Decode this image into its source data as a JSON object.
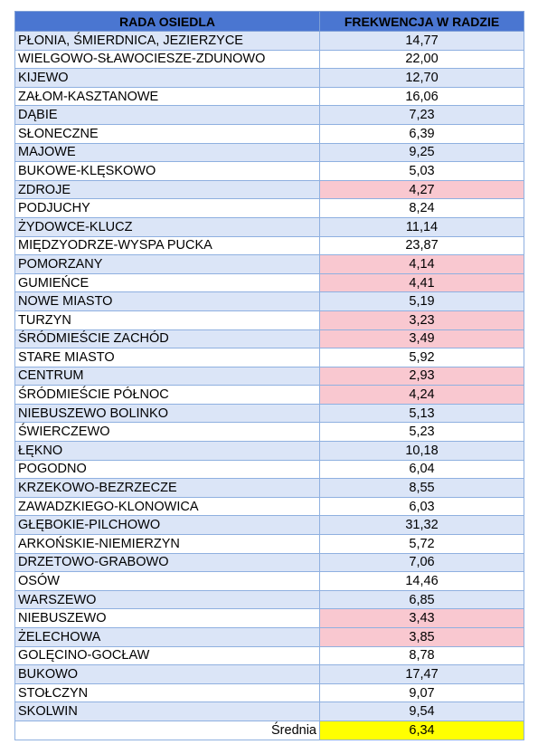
{
  "header": {
    "col1": "RADA OSIEDLA",
    "col2": "FREKWENCJA W RADZIE"
  },
  "rows": [
    {
      "name": "PŁONIA, ŚMIERDNICA, JEZIERZYCE",
      "value": "14,77",
      "low": false
    },
    {
      "name": "WIELGOWO-SŁAWOCIESZE-ZDUNOWO",
      "value": "22,00",
      "low": false
    },
    {
      "name": "KIJEWO",
      "value": "12,70",
      "low": false
    },
    {
      "name": "ZAŁOM-KASZTANOWE",
      "value": "16,06",
      "low": false
    },
    {
      "name": "DĄBIE",
      "value": "7,23",
      "low": false
    },
    {
      "name": "SŁONECZNE",
      "value": "6,39",
      "low": false
    },
    {
      "name": "MAJOWE",
      "value": "9,25",
      "low": false
    },
    {
      "name": "BUKOWE-KLĘSKOWO",
      "value": "5,03",
      "low": false
    },
    {
      "name": "ZDROJE",
      "value": "4,27",
      "low": true
    },
    {
      "name": "PODJUCHY",
      "value": "8,24",
      "low": false
    },
    {
      "name": "ŻYDOWCE-KLUCZ",
      "value": "11,14",
      "low": false
    },
    {
      "name": "MIĘDZYODRZE-WYSPA PUCKA",
      "value": "23,87",
      "low": false
    },
    {
      "name": "POMORZANY",
      "value": "4,14",
      "low": true
    },
    {
      "name": "GUMIEŃCE",
      "value": "4,41",
      "low": true
    },
    {
      "name": "NOWE MIASTO",
      "value": "5,19",
      "low": false
    },
    {
      "name": "TURZYN",
      "value": "3,23",
      "low": true
    },
    {
      "name": "ŚRÓDMIEŚCIE ZACHÓD",
      "value": "3,49",
      "low": true
    },
    {
      "name": "STARE MIASTO",
      "value": "5,92",
      "low": false
    },
    {
      "name": "CENTRUM",
      "value": "2,93",
      "low": true
    },
    {
      "name": "ŚRÓDMIEŚCIE PÓŁNOC",
      "value": "4,24",
      "low": true
    },
    {
      "name": "NIEBUSZEWO BOLINKO",
      "value": "5,13",
      "low": false
    },
    {
      "name": "ŚWIERCZEWO",
      "value": "5,23",
      "low": false
    },
    {
      "name": "ŁĘKNO",
      "value": "10,18",
      "low": false
    },
    {
      "name": "POGODNO",
      "value": "6,04",
      "low": false
    },
    {
      "name": "KRZEKOWO-BEZRZECZE",
      "value": "8,55",
      "low": false
    },
    {
      "name": "ZAWADZKIEGO-KLONOWICA",
      "value": "6,03",
      "low": false
    },
    {
      "name": "GŁĘBOKIE-PILCHOWO",
      "value": "31,32",
      "low": false
    },
    {
      "name": "ARKOŃSKIE-NIEMIERZYN",
      "value": "5,72",
      "low": false
    },
    {
      "name": "DRZETOWO-GRABOWO",
      "value": "7,06",
      "low": false
    },
    {
      "name": "OSÓW",
      "value": "14,46",
      "low": false
    },
    {
      "name": "WARSZEWO",
      "value": "6,85",
      "low": false
    },
    {
      "name": "NIEBUSZEWO",
      "value": "3,43",
      "low": true
    },
    {
      "name": "ŻELECHOWA",
      "value": "3,85",
      "low": true
    },
    {
      "name": "GOLĘCINO-GOCŁAW",
      "value": "8,78",
      "low": false
    },
    {
      "name": "BUKOWO",
      "value": "17,47",
      "low": false
    },
    {
      "name": "STOŁCZYN",
      "value": "9,07",
      "low": false
    },
    {
      "name": "SKOLWIN",
      "value": "9,54",
      "low": false
    }
  ],
  "average": {
    "label": "Średnia",
    "value": "6,34"
  },
  "colors": {
    "header_bg": "#4a76d1",
    "row_alt_bg": "#dbe5f7",
    "low_bg": "#f9c8d0",
    "low_text": "#cc0000",
    "average_bg": "#ffff00"
  }
}
